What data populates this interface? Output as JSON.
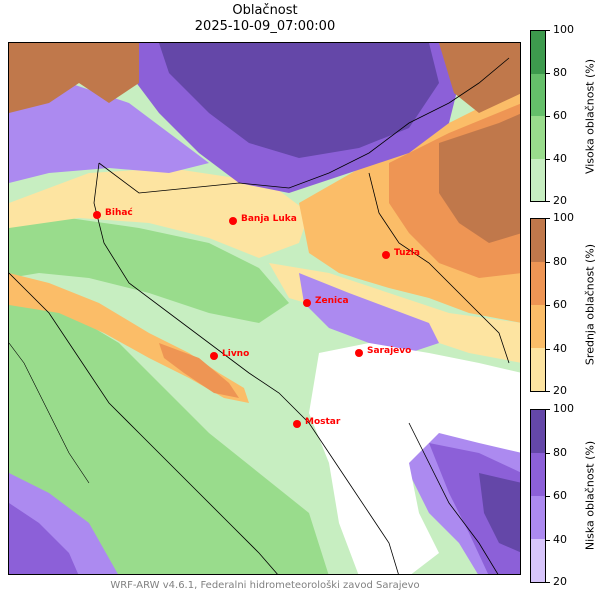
{
  "title": "Oblačnost",
  "subtitle": "2025-10-09_07:00:00",
  "footer": "WRF-ARW v4.6.1, Federalni hidrometeorološki zavod Sarajevo",
  "cities": [
    {
      "name": "Bihać"
    },
    {
      "name": "Banja Luka"
    },
    {
      "name": "Tuzla"
    },
    {
      "name": "Zenica"
    },
    {
      "name": "Sarajevo"
    },
    {
      "name": "Livno"
    },
    {
      "name": "Mostar"
    }
  ],
  "colorbars": [
    {
      "label": "Visoka oblačnost (%)",
      "ticks": [
        "20",
        "40",
        "60",
        "80",
        "100"
      ],
      "colors": [
        "#c7eec1",
        "#99dc8c",
        "#65bf6a",
        "#3d9a4d"
      ]
    },
    {
      "label": "Srednja oblačnost (%)",
      "ticks": [
        "20",
        "40",
        "60",
        "80",
        "100"
      ],
      "colors": [
        "#fde4a1",
        "#fbbd68",
        "#ee9554",
        "#c0784b"
      ]
    },
    {
      "label": "Niska oblačnost (%)",
      "ticks": [
        "20",
        "40",
        "60",
        "80",
        "100"
      ],
      "colors": [
        "#d7c5fb",
        "#ac8af0",
        "#8c60d8",
        "#6447a8"
      ]
    }
  ]
}
